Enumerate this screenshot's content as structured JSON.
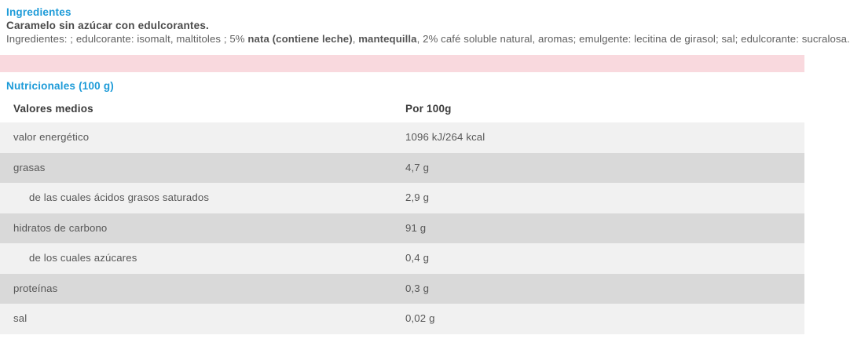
{
  "colors": {
    "heading_blue": "#1d9bd8",
    "pink_bar": "#f9d9de",
    "row_light": "#f1f1f1",
    "row_dark": "#d9d9d9"
  },
  "ingredients_section": {
    "title": "Ingredientes",
    "product_summary": "Caramelo sin azúcar con edulcorantes.",
    "ingredients_line_segments": [
      {
        "text": "Ingredientes: ; edulcorante: isomalt, maltitoles ; 5% ",
        "bold": false
      },
      {
        "text": "nata (contiene leche)",
        "bold": true
      },
      {
        "text": ", ",
        "bold": false
      },
      {
        "text": "mantequilla",
        "bold": true
      },
      {
        "text": ", 2% café soluble natural, aromas; emulgente: lecitina de girasol; sal; edulcorante: sucralosa.",
        "bold": false
      }
    ]
  },
  "nutrition_section": {
    "title": "Nutricionales (100 g)",
    "table": {
      "columns": [
        "Valores medios",
        "Por 100g"
      ],
      "rows": [
        {
          "label": "valor energético",
          "value": "1096 kJ/264 kcal",
          "indent": false
        },
        {
          "label": "grasas",
          "value": "4,7 g",
          "indent": false
        },
        {
          "label": "de las cuales ácidos grasos saturados",
          "value": "2,9 g",
          "indent": true
        },
        {
          "label": "hidratos de carbono",
          "value": "91 g",
          "indent": false
        },
        {
          "label": "de los cuales azúcares",
          "value": "0,4 g",
          "indent": true
        },
        {
          "label": "proteínas",
          "value": "0,3 g",
          "indent": false
        },
        {
          "label": "sal",
          "value": "0,02 g",
          "indent": false
        }
      ]
    }
  }
}
